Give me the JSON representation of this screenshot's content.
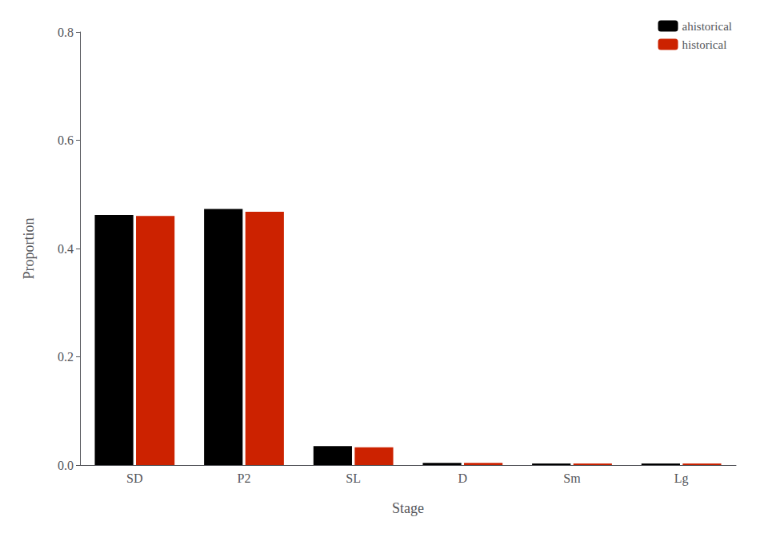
{
  "chart_data": {
    "type": "bar",
    "xlabel": "Stage",
    "ylabel": "Proportion",
    "categories": [
      "SD",
      "P2",
      "SL",
      "D",
      "Sm",
      "Lg"
    ],
    "series": [
      {
        "name": "ahistorical",
        "color": "#000000",
        "values": [
          0.462,
          0.473,
          0.035,
          0.004,
          0.003,
          0.003
        ]
      },
      {
        "name": "historical",
        "color": "#cc2200",
        "values": [
          0.46,
          0.468,
          0.033,
          0.004,
          0.003,
          0.003
        ]
      }
    ],
    "ylim": [
      0.0,
      0.8
    ],
    "yticks": [
      {
        "value": 0.0,
        "label": "0.0"
      },
      0.2,
      0.4,
      0.6,
      0.8
    ],
    "grid": false,
    "legend": "upper right"
  }
}
